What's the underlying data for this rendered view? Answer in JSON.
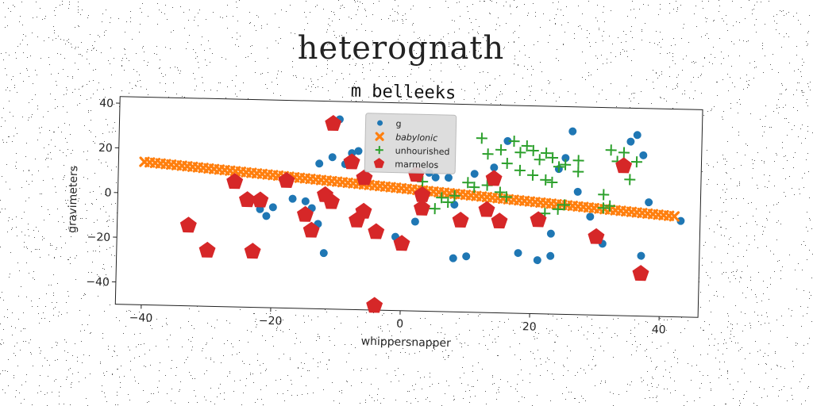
{
  "title": "heterognath",
  "subtitle": "m belleeks",
  "chart_data": {
    "type": "scatter",
    "xlabel": "whippersnapper",
    "ylabel": "gravimeters",
    "xlim": [
      -44,
      46
    ],
    "ylim": [
      -50,
      43
    ],
    "xticks": [
      -40,
      -20,
      0,
      20,
      40
    ],
    "yticks": [
      -40,
      -20,
      0,
      20,
      40
    ],
    "legend_position": "upper center",
    "series": [
      {
        "name": "g",
        "marker": "circle",
        "color": "#1f77b4",
        "points": [
          [
            -10,
            35
          ],
          [
            -7,
            21
          ],
          [
            -8,
            20
          ],
          [
            -11,
            18
          ],
          [
            -13,
            15
          ],
          [
            -17,
            -1
          ],
          [
            -15,
            -2
          ],
          [
            -22,
            -6
          ],
          [
            -21,
            -9
          ],
          [
            -20,
            -5
          ],
          [
            -14,
            -5
          ],
          [
            -13,
            -12
          ],
          [
            -12,
            -25
          ],
          [
            -1,
            -17
          ],
          [
            2,
            -10
          ],
          [
            4,
            12
          ],
          [
            5,
            10
          ],
          [
            7,
            10
          ],
          [
            8,
            -26
          ],
          [
            8,
            -2
          ],
          [
            10,
            -25
          ],
          [
            11,
            12
          ],
          [
            14,
            15
          ],
          [
            16,
            27
          ],
          [
            18,
            -23
          ],
          [
            21,
            -26
          ],
          [
            23,
            -14
          ],
          [
            23,
            -24
          ],
          [
            24,
            15
          ],
          [
            25,
            20
          ],
          [
            26,
            32
          ],
          [
            27,
            5
          ],
          [
            29,
            -6
          ],
          [
            31,
            -18
          ],
          [
            35,
            28
          ],
          [
            36,
            31
          ],
          [
            37,
            -23
          ],
          [
            37,
            22
          ],
          [
            38,
            1
          ],
          [
            43,
            -7
          ],
          [
            -9,
            15
          ]
        ]
      },
      {
        "name": "babylonic",
        "marker": "x",
        "color": "#ff7f0e",
        "line": {
          "x": [
            -40,
            42
          ],
          "y": [
            14,
            -5
          ]
        }
      },
      {
        "name": "unhourished",
        "marker": "plus",
        "color": "#2ca02c",
        "points": [
          [
            12,
            28
          ],
          [
            13,
            21
          ],
          [
            15,
            23
          ],
          [
            16,
            17
          ],
          [
            17,
            27
          ],
          [
            18,
            22
          ],
          [
            19,
            25
          ],
          [
            20,
            23
          ],
          [
            21,
            19
          ],
          [
            22,
            22
          ],
          [
            23,
            20
          ],
          [
            24,
            16
          ],
          [
            25,
            17
          ],
          [
            27,
            19
          ],
          [
            27,
            14
          ],
          [
            18,
            14
          ],
          [
            20,
            12
          ],
          [
            22,
            10
          ],
          [
            23,
            9
          ],
          [
            10,
            8
          ],
          [
            11,
            6
          ],
          [
            13,
            7
          ],
          [
            15,
            4
          ],
          [
            16,
            2
          ],
          [
            6,
            1
          ],
          [
            7,
            -1
          ],
          [
            8,
            2
          ],
          [
            5,
            -4
          ],
          [
            3,
            8
          ],
          [
            32,
            24
          ],
          [
            33,
            19
          ],
          [
            34,
            23
          ],
          [
            35,
            11
          ],
          [
            36,
            19
          ],
          [
            31,
            4
          ],
          [
            31,
            -2
          ],
          [
            32,
            -1
          ],
          [
            24,
            -3
          ],
          [
            25,
            -1
          ],
          [
            22,
            -5
          ]
        ]
      },
      {
        "name": "marmelos",
        "marker": "pentagon",
        "color": "#d62728",
        "points": [
          [
            -11,
            33
          ],
          [
            -8,
            16
          ],
          [
            -6,
            9
          ],
          [
            -18,
            7
          ],
          [
            -26,
            6
          ],
          [
            -24,
            -2
          ],
          [
            -22,
            -2
          ],
          [
            -12,
            1
          ],
          [
            -11,
            -2
          ],
          [
            -6,
            -6
          ],
          [
            -7,
            -10
          ],
          [
            -15,
            -8
          ],
          [
            -14,
            -15
          ],
          [
            -33,
            -14
          ],
          [
            -30,
            -25
          ],
          [
            -23,
            -25
          ],
          [
            -4,
            -15
          ],
          [
            0,
            -20
          ],
          [
            -4,
            -48
          ],
          [
            2,
            11
          ],
          [
            3,
            2
          ],
          [
            3,
            -4
          ],
          [
            9,
            -9
          ],
          [
            13,
            -4
          ],
          [
            14,
            10
          ],
          [
            15,
            -9
          ],
          [
            21,
            -8
          ],
          [
            30,
            -15
          ],
          [
            34,
            17
          ],
          [
            37,
            -31
          ]
        ]
      }
    ]
  }
}
